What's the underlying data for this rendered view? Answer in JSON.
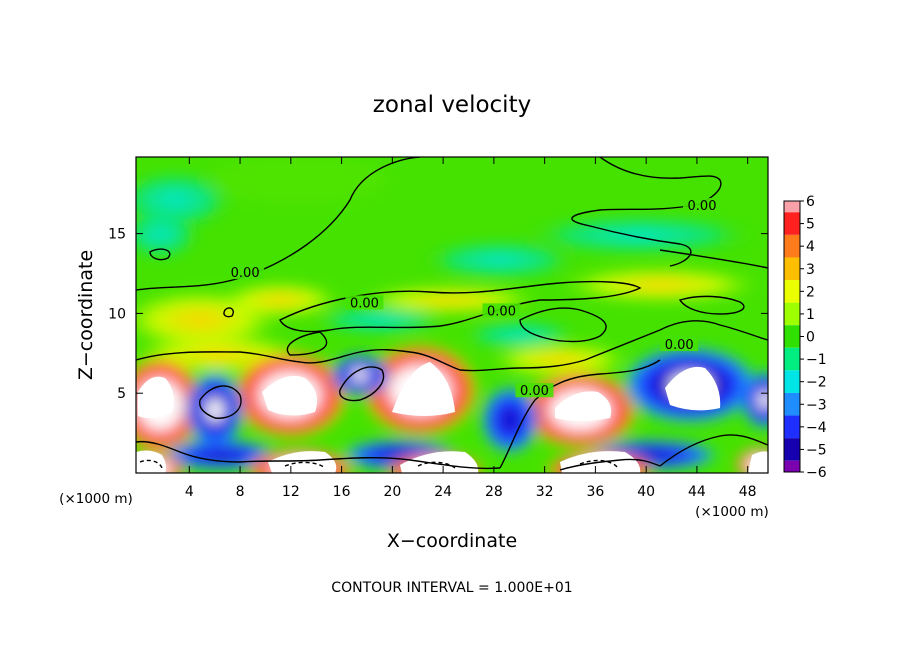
{
  "chart_data": {
    "type": "heatmap",
    "title": "zonal velocity",
    "xlabel": "X−coordinate",
    "ylabel": "Z−coordinate",
    "x_unit_label": "(×1000 m)",
    "y_unit_label": "(×1000 m)",
    "xlim": [
      -0.2,
      49.6
    ],
    "ylim": [
      0,
      19.8
    ],
    "x_ticks": [
      4,
      8,
      12,
      16,
      20,
      24,
      28,
      32,
      36,
      40,
      44,
      48
    ],
    "y_ticks": [
      5,
      10,
      15
    ],
    "colorbar": {
      "ticks": [
        6,
        5,
        4,
        3,
        2,
        1,
        0,
        -1,
        -2,
        -3,
        -4,
        -5,
        -6
      ],
      "range": [
        -6,
        6
      ],
      "colors": [
        "#f9a0a8",
        "#ff2020",
        "#ff7a1a",
        "#ffbf00",
        "#eaff00",
        "#9eff00",
        "#30e000",
        "#00ee80",
        "#00e6e6",
        "#1f8cff",
        "#1f2fff",
        "#1500b0",
        "#7a00b0"
      ]
    },
    "contour_level_label": "0.00",
    "contour_labels": [
      {
        "text": "0.00",
        "x": 44.4,
        "y": 16.6
      },
      {
        "text": "0.00",
        "x": 8.4,
        "y": 12.4
      },
      {
        "text": "0.00",
        "x": 17.8,
        "y": 10.5
      },
      {
        "text": "0.00",
        "x": 28.6,
        "y": 10.0
      },
      {
        "text": "0.00",
        "x": 42.6,
        "y": 7.9
      },
      {
        "text": "0.00",
        "x": 31.2,
        "y": 5.0
      }
    ],
    "features": [
      {
        "kind": "positive_max",
        "x": 1.8,
        "y": 3.8
      },
      {
        "kind": "positive_max",
        "x": 13.2,
        "y": 4.7
      },
      {
        "kind": "positive_max",
        "x": 23.3,
        "y": 5.1
      },
      {
        "kind": "positive_max",
        "x": 36.1,
        "y": 4.0
      },
      {
        "kind": "negative_min",
        "x": 6.6,
        "y": 4.4
      },
      {
        "kind": "negative_min",
        "x": 18.0,
        "y": 6.0
      },
      {
        "kind": "negative_min",
        "x": 43.8,
        "y": 5.2
      },
      {
        "kind": "negative_min",
        "x": 49.2,
        "y": 4.2
      },
      {
        "kind": "positive_max_surface",
        "x": 13.3,
        "y": 0.6
      },
      {
        "kind": "positive_max_surface",
        "x": 23.8,
        "y": 0.7
      },
      {
        "kind": "positive_max_surface",
        "x": 36.3,
        "y": 0.7
      }
    ],
    "footer": "CONTOUR INTERVAL = 1.000E+01"
  }
}
